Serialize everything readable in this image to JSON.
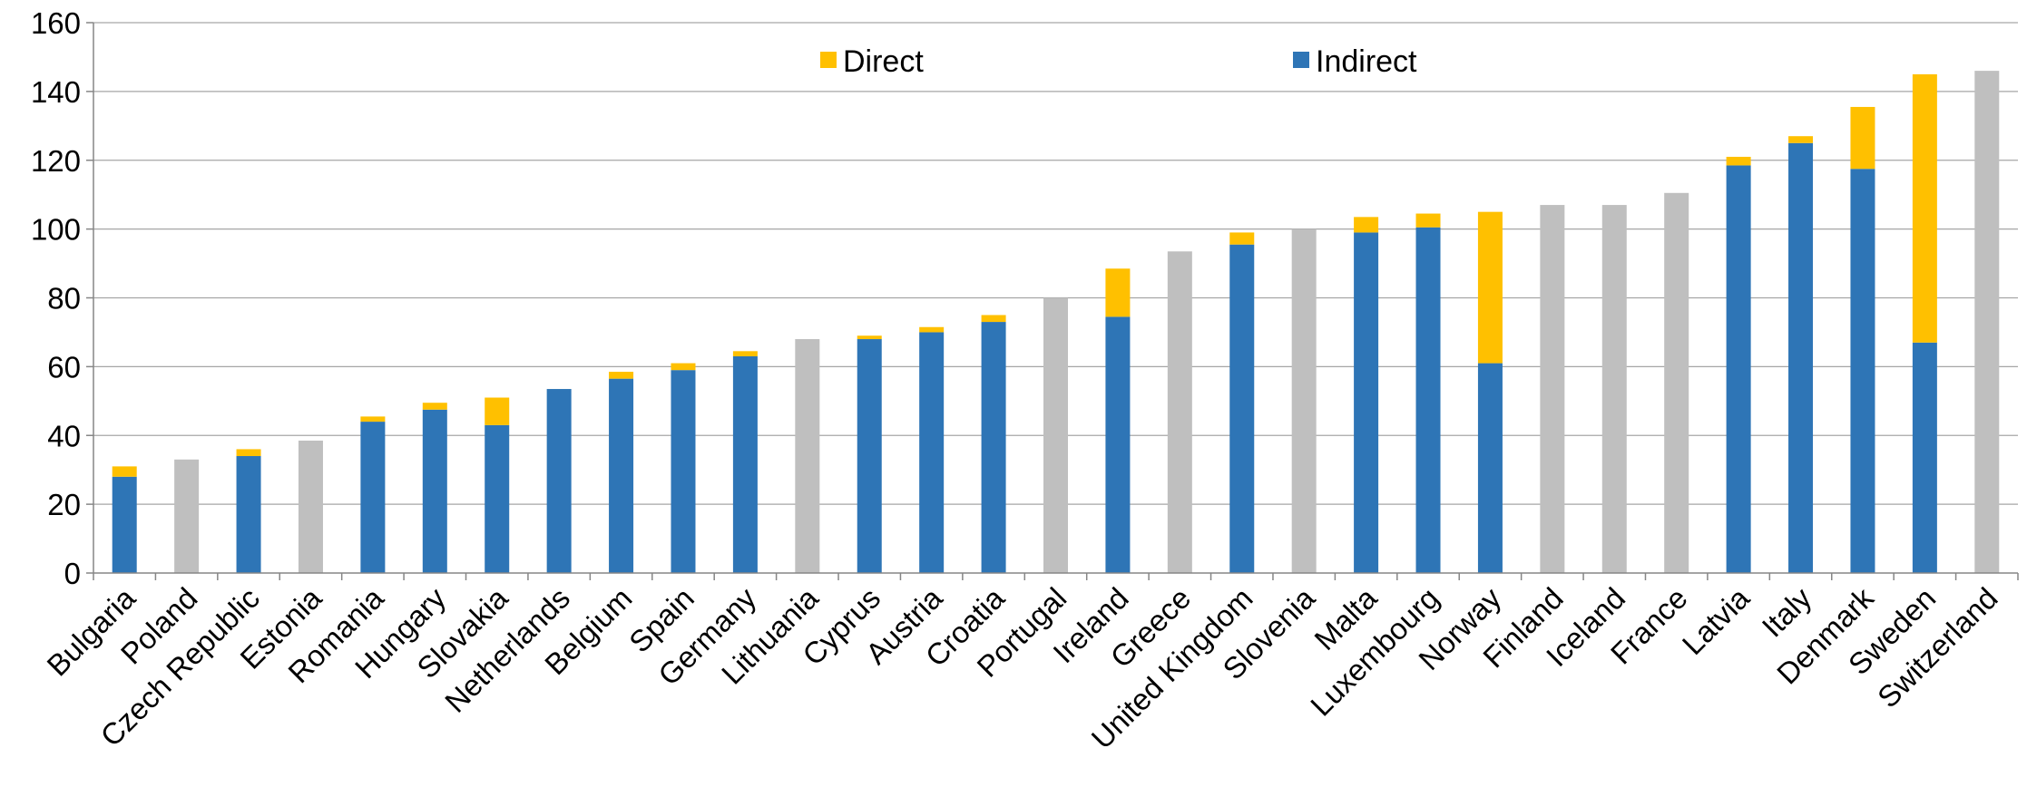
{
  "chart_data": {
    "type": "bar",
    "stacked": true,
    "categories": [
      "Bulgaria",
      "Poland",
      "Czech Republic",
      "Estonia",
      "Romania",
      "Hungary",
      "Slovakia",
      "Netherlands",
      "Belgium",
      "Spain",
      "Germany",
      "Lithuania",
      "Cyprus",
      "Austria",
      "Croatia",
      "Portugal",
      "Ireland",
      "Greece",
      "United Kingdom",
      "Slovenia",
      "Malta",
      "Luxembourg",
      "Norway",
      "Finland",
      "Iceland",
      "France",
      "Latvia",
      "Italy",
      "Denmark",
      "Sweden",
      "Switzerland"
    ],
    "series": [
      {
        "name": "Indirect",
        "color": "#2e75b6",
        "values": [
          28,
          null,
          34,
          null,
          44,
          47.5,
          43,
          53.5,
          56.5,
          59,
          63,
          null,
          68,
          70,
          73,
          null,
          74.5,
          null,
          95.5,
          null,
          99,
          100.5,
          61,
          null,
          null,
          null,
          118.5,
          125,
          117.5,
          67,
          null
        ]
      },
      {
        "name": "Direct",
        "color": "#ffc000",
        "values": [
          3,
          null,
          2,
          null,
          1.5,
          2,
          8,
          0,
          2,
          2,
          1.5,
          null,
          1,
          1.5,
          2,
          null,
          14,
          null,
          3.5,
          null,
          4.5,
          4,
          44,
          null,
          null,
          null,
          2.5,
          2,
          18,
          78,
          null
        ]
      }
    ],
    "total_only": {
      "color": "#bfbfbf",
      "values": [
        null,
        33,
        null,
        38.5,
        null,
        null,
        null,
        null,
        null,
        null,
        null,
        68,
        null,
        null,
        null,
        80,
        null,
        93.5,
        null,
        100,
        null,
        null,
        null,
        107,
        107,
        110.5,
        null,
        null,
        null,
        null,
        146
      ]
    },
    "y_ticks": [
      "0",
      "20",
      "40",
      "60",
      "80",
      "100",
      "120",
      "140",
      "160"
    ],
    "ylim": [
      0,
      160
    ],
    "grid": true,
    "legend_position": "top-center",
    "title": "",
    "xlabel": "",
    "ylabel": ""
  }
}
